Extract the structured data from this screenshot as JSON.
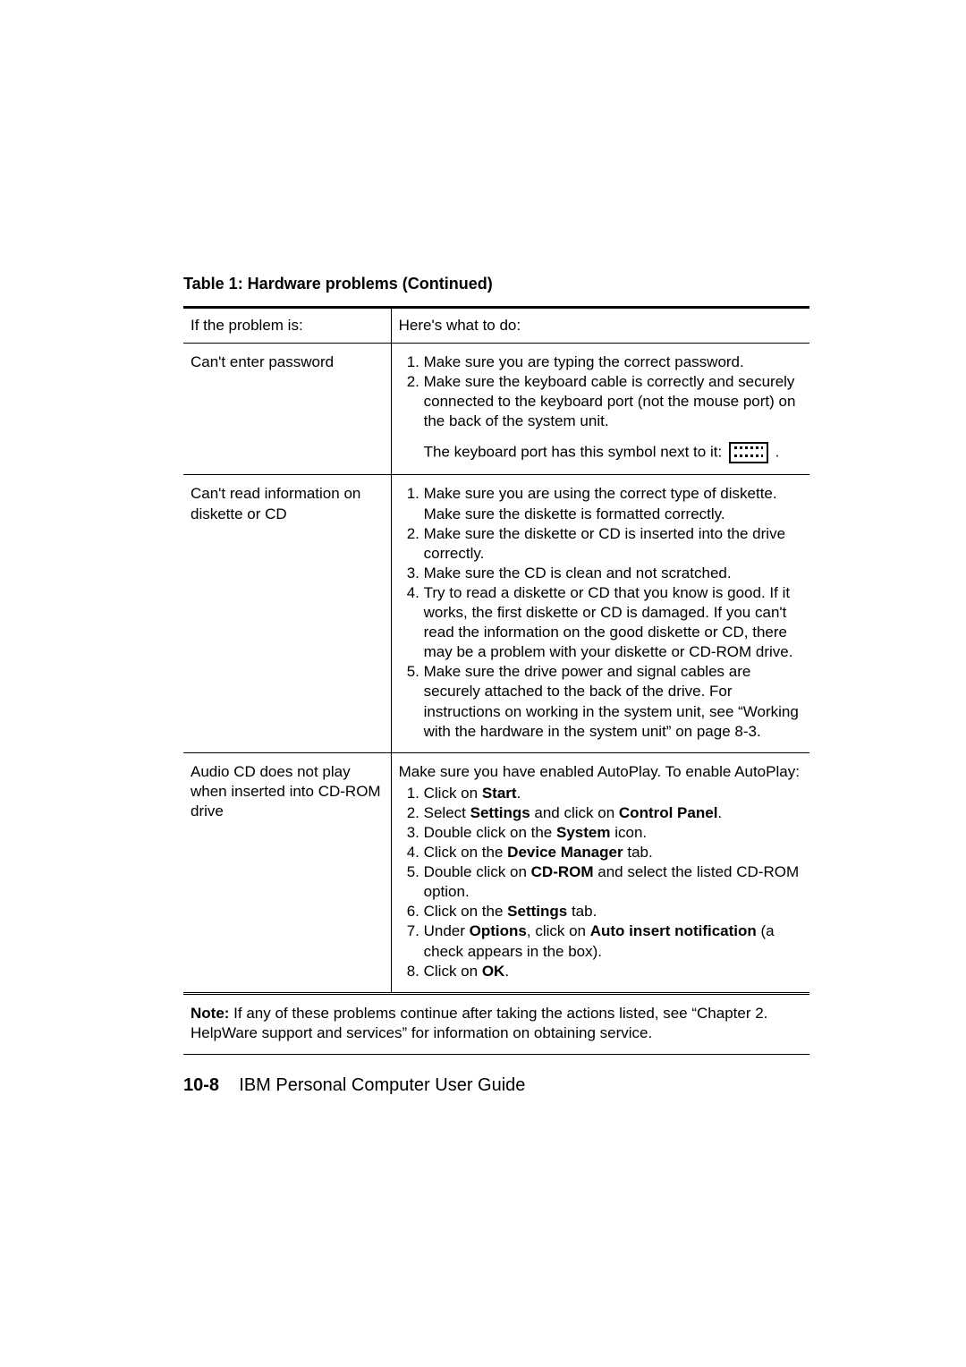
{
  "table": {
    "title": "Table 1: Hardware problems (Continued)",
    "header": {
      "problem": "If the problem is:",
      "action": "Here's what to do:"
    },
    "rows": [
      {
        "problem": "Can't enter password",
        "steps": [
          "Make sure you are typing the correct password.",
          "Make sure the keyboard cable is correctly and securely connected to the keyboard port (not the mouse port) on the back of the system unit."
        ],
        "extra_before_icon": "The keyboard port has this symbol next to it: ",
        "extra_after_icon": " ."
      },
      {
        "problem": "Can't read information on diskette or CD",
        "steps": [
          "Make sure you are using the correct type of diskette. Make sure the diskette is formatted correctly.",
          "Make sure the diskette or CD is inserted into the drive correctly.",
          "Make sure the CD is clean and not scratched.",
          "Try to read a diskette or CD that you know is good. If it works, the first diskette or CD is damaged. If you can't read the information on the good diskette or CD, there may be a problem with your diskette or CD-ROM drive.",
          "Make sure the drive power and signal cables are securely attached to the back of the drive. For instructions on working in the system unit, see “Working with the hardware in the system unit” on page 8-3."
        ]
      },
      {
        "problem": "Audio CD does not play when inserted into CD-ROM drive",
        "intro": "Make sure you have enabled AutoPlay. To enable AutoPlay:",
        "steps_rich": [
          {
            "pre": "Click on ",
            "bold": "Start",
            "post": "."
          },
          {
            "pre": "Select ",
            "bold": "Settings",
            "post": " and click on ",
            "bold2": "Control Panel",
            "post2": "."
          },
          {
            "pre": "Double click on the ",
            "bold": "System",
            "post": " icon."
          },
          {
            "pre": "Click on the ",
            "bold": "Device Manager",
            "post": " tab."
          },
          {
            "pre": "Double click on ",
            "bold": "CD-ROM",
            "post": " and select the listed CD-ROM option."
          },
          {
            "pre": "Click on the ",
            "bold": "Settings",
            "post": " tab."
          },
          {
            "pre": "Under ",
            "bold": "Options",
            "post": ", click on ",
            "bold2": "Auto insert notification",
            "post2": " (a check appears in the box)."
          },
          {
            "pre": "Click on ",
            "bold": "OK",
            "post": "."
          }
        ]
      }
    ],
    "note_bold": "Note:",
    "note_text": " If any of these problems continue after taking the actions listed, see “Chapter 2. HelpWare support and services”  for information on obtaining service."
  },
  "footer": {
    "page": "10-8",
    "title": "IBM Personal Computer User Guide"
  }
}
